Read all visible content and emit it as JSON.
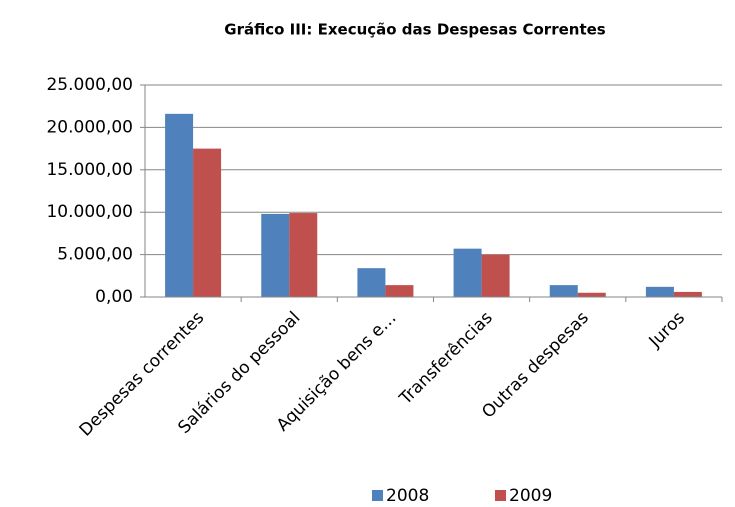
{
  "chart_data": {
    "type": "bar",
    "title": "Gráfico III: Execução das Despesas Correntes",
    "categories": [
      "Despesas correntes",
      "Salários do pessoal",
      "Aquisição bens e…",
      "Transferências",
      "Outras despesas",
      "Juros"
    ],
    "series": [
      {
        "name": "2008",
        "color": "#4f81bd",
        "values": [
          21600,
          9800,
          3400,
          5700,
          1400,
          1200
        ]
      },
      {
        "name": "2009",
        "color": "#c0504d",
        "values": [
          17500,
          9900,
          1400,
          5000,
          500,
          600
        ]
      }
    ],
    "ylim": [
      0,
      25000
    ],
    "yticks": [
      {
        "value": 0,
        "label": "0,00"
      },
      {
        "value": 5000,
        "label": "5.000,00"
      },
      {
        "value": 10000,
        "label": "10.000,00"
      },
      {
        "value": 15000,
        "label": "15.000,00"
      },
      {
        "value": 20000,
        "label": "20.000,00"
      },
      {
        "value": 25000,
        "label": "25.000,00"
      }
    ],
    "grid": true,
    "legend": "bottom"
  }
}
